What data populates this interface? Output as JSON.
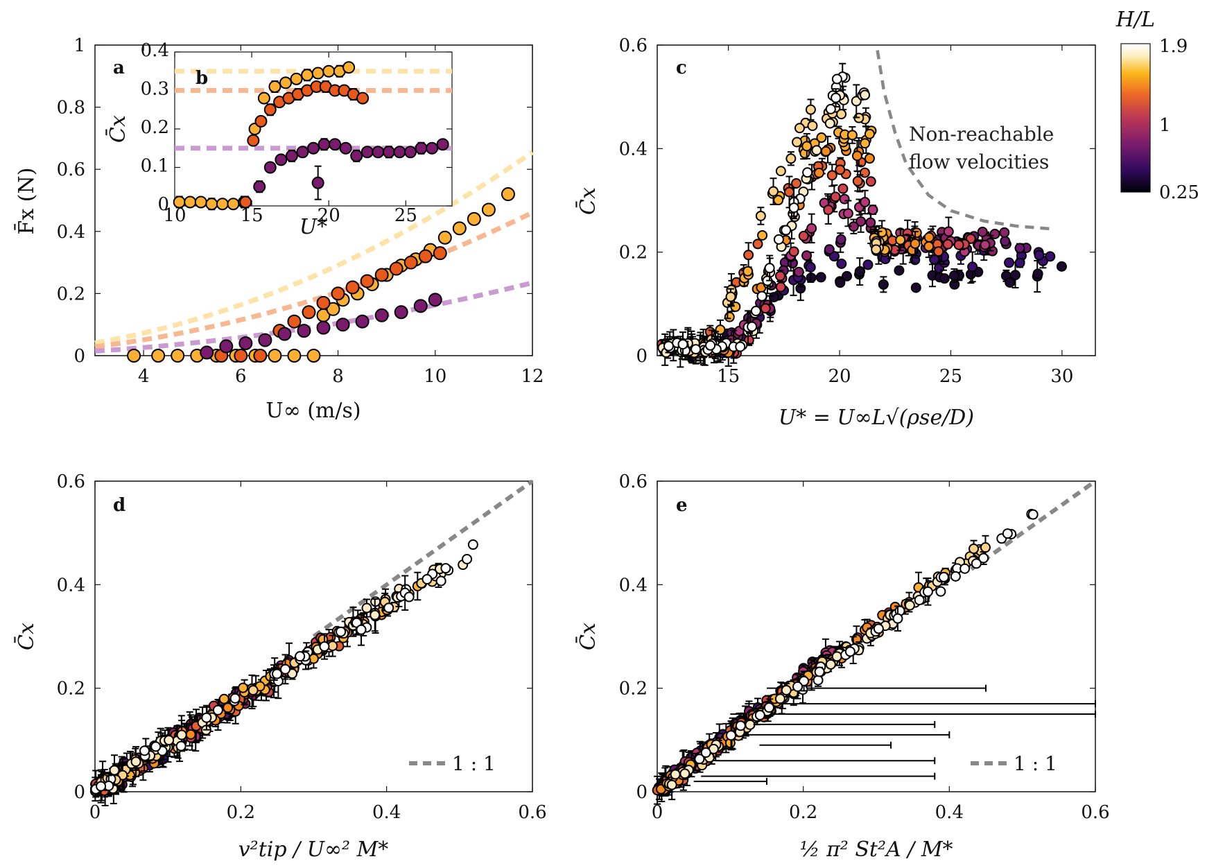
{
  "colorbar": {
    "label": "H/L",
    "ticks": [
      "1.9",
      "1",
      "0.25"
    ],
    "colors": [
      "#000004",
      "#320a5e",
      "#781c6d",
      "#bc3754",
      "#ed6925",
      "#fbb61a",
      "#fcffa4",
      "#ffffff"
    ]
  },
  "chart_data": [
    {
      "panel": "a",
      "type": "scatter",
      "xlabel": "U∞ (m/s)",
      "ylabel": "F̄x (N)",
      "xlim": [
        3,
        12
      ],
      "ylim": [
        0,
        1
      ],
      "xticks": [
        "4",
        "6",
        "8",
        "10",
        "12"
      ],
      "yticks": [
        "0",
        "0.2",
        "0.4",
        "0.6",
        "0.8",
        "1"
      ],
      "series": [
        {
          "color": "#fbb034",
          "x": [
            3.8,
            4.3,
            4.7,
            5.1,
            5.5,
            5.9,
            6.3,
            6.7,
            7.1,
            7.5,
            7.7,
            7.9,
            8.1,
            8.4,
            8.7,
            9.0,
            9.3,
            9.6,
            9.9,
            10.2,
            10.5,
            10.8,
            11.1,
            11.5
          ],
          "y": [
            0,
            0,
            0,
            0,
            0,
            0,
            0,
            0,
            0,
            0,
            0.13,
            0.15,
            0.18,
            0.2,
            0.23,
            0.26,
            0.29,
            0.31,
            0.34,
            0.38,
            0.41,
            0.44,
            0.47,
            0.52
          ]
        },
        {
          "color": "#e8591c",
          "x": [
            5.6,
            6.0,
            6.4,
            6.8,
            7.1,
            7.4,
            7.7,
            8.0,
            8.3,
            8.6,
            8.9,
            9.2,
            9.5,
            9.8,
            10.1
          ],
          "y": [
            0,
            0,
            0,
            0.08,
            0.11,
            0.14,
            0.17,
            0.2,
            0.22,
            0.24,
            0.26,
            0.28,
            0.3,
            0.32,
            0.33
          ]
        },
        {
          "color": "#7a1b6d",
          "x": [
            5.3,
            5.7,
            6.1,
            6.5,
            6.9,
            7.3,
            7.7,
            8.1,
            8.5,
            8.9,
            9.3,
            9.7,
            10.0
          ],
          "y": [
            0.01,
            0.03,
            0.04,
            0.05,
            0.07,
            0.08,
            0.09,
            0.1,
            0.11,
            0.13,
            0.14,
            0.16,
            0.18
          ]
        }
      ],
      "fits": [
        {
          "color": "#fde3a7",
          "coef": 0.00455
        },
        {
          "color": "#f7b891",
          "coef": 0.0032
        },
        {
          "color": "#c99bd0",
          "coef": 0.00163
        }
      ]
    },
    {
      "panel": "b",
      "type": "scatter",
      "inset": true,
      "xlabel": "U*",
      "ylabel": "C̄x",
      "xlim": [
        10,
        28
      ],
      "ylim": [
        0,
        0.4
      ],
      "xticks": [
        "10",
        "15",
        "20",
        "25"
      ],
      "yticks": [
        "0",
        "0.1",
        "0.2",
        "0.3",
        "0.4"
      ],
      "hlines": [
        {
          "y": 0.35,
          "color": "#fde3a7"
        },
        {
          "y": 0.3,
          "color": "#f7b891"
        },
        {
          "y": 0.15,
          "color": "#c99bd0"
        }
      ],
      "series": [
        {
          "color": "#fbb034",
          "x": [
            10.3,
            11.0,
            11.7,
            12.4,
            13.1,
            13.8,
            14.5,
            15.2,
            15.8,
            16.5,
            17.2,
            17.9,
            18.6,
            19.3,
            20.0,
            20.7,
            21.3
          ],
          "y": [
            0.01,
            0.01,
            0.01,
            0.005,
            0.005,
            0.005,
            0.01,
            0.2,
            0.28,
            0.31,
            0.32,
            0.33,
            0.34,
            0.345,
            0.35,
            0.35,
            0.36
          ]
        },
        {
          "color": "#e8591c",
          "x": [
            14.6,
            15.1,
            15.6,
            16.2,
            16.8,
            17.4,
            18.0,
            18.6,
            19.2,
            19.8,
            20.4,
            21.0,
            21.6,
            22.2
          ],
          "y": [
            0.01,
            0.17,
            0.22,
            0.25,
            0.27,
            0.28,
            0.29,
            0.3,
            0.31,
            0.31,
            0.3,
            0.3,
            0.29,
            0.28
          ]
        },
        {
          "color": "#7a1b6d",
          "x": [
            15.5,
            16.2,
            16.9,
            17.6,
            18.3,
            19.0,
            19.7,
            20.4,
            21.1,
            21.8,
            22.5,
            23.2,
            23.9,
            24.6,
            25.3,
            26.0,
            26.7,
            27.4
          ],
          "y": [
            0.05,
            0.1,
            0.12,
            0.13,
            0.14,
            0.15,
            0.16,
            0.16,
            0.15,
            0.13,
            0.14,
            0.14,
            0.14,
            0.14,
            0.14,
            0.15,
            0.15,
            0.16
          ]
        }
      ]
    },
    {
      "panel": "c",
      "type": "scatter",
      "xlabel": "U* = U∞L√(ρse/D)",
      "ylabel": "C̄x",
      "xlim": [
        11.8,
        31.5
      ],
      "ylim": [
        0,
        0.6
      ],
      "xticks": [
        "15",
        "20",
        "25",
        "30"
      ],
      "yticks": [
        "0",
        "0.2",
        "0.4",
        "0.6"
      ],
      "annotation": [
        "Non-reachable",
        "flow velocities"
      ],
      "boundary_curve": {
        "x": [
          21.7,
          22.0,
          22.5,
          23.0,
          24.0,
          25.0,
          26.5,
          28.0,
          29.5
        ],
        "y": [
          0.59,
          0.51,
          0.43,
          0.37,
          0.31,
          0.28,
          0.26,
          0.25,
          0.245
        ]
      }
    },
    {
      "panel": "d",
      "type": "scatter",
      "xlabel": "v²tip / U∞² M*",
      "ylabel": "C̄x",
      "xlim": [
        0,
        0.6
      ],
      "ylim": [
        0,
        0.6
      ],
      "xticks": [
        "0",
        "0.2",
        "0.4",
        "0.6"
      ],
      "yticks": [
        "0",
        "0.2",
        "0.4",
        "0.6"
      ],
      "legend": "1 : 1",
      "legend_position": "bottom-right"
    },
    {
      "panel": "e",
      "type": "scatter",
      "xlabel": "½ π² St²A / M*",
      "ylabel": "C̄x",
      "xlim": [
        0,
        0.6
      ],
      "ylim": [
        0,
        0.6
      ],
      "xticks": [
        "0",
        "0.2",
        "0.4",
        "0.6"
      ],
      "yticks": [
        "0",
        "0.2",
        "0.4",
        "0.6"
      ],
      "legend": "1 : 1",
      "legend_position": "bottom-right"
    }
  ]
}
